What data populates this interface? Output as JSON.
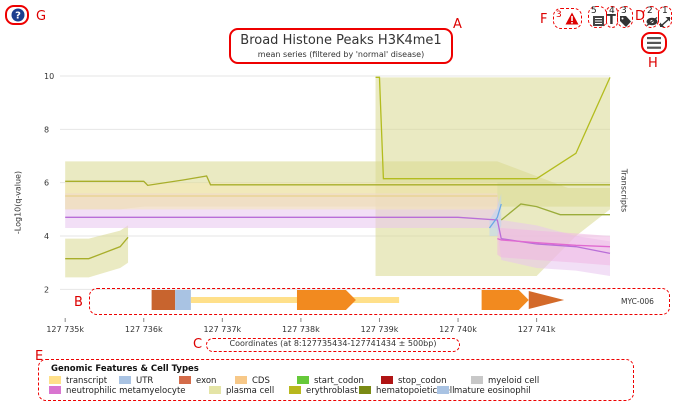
{
  "markers": {
    "A": "A",
    "B": "B",
    "C": "C",
    "D": "D",
    "E": "E",
    "F": "F",
    "G": "G",
    "H": "H"
  },
  "toolbar": {
    "help_icon": "?",
    "warning_count": "3",
    "list_count": "5",
    "text_count": "4",
    "tag_count": "3",
    "eye_count": "2",
    "expand_count": "1",
    "text_glyph": "T"
  },
  "chart_data": {
    "type": "area",
    "title": "Broad Histone Peaks H3K4me1",
    "subtitle": "mean series (filtered by 'normal' disease)",
    "ylabel": "-Log10(q-value)",
    "right_label": "Transcripts",
    "xlabel": "Coordinates (at 8:127735434-127741434 ± 500bp)",
    "ylim": [
      1.6,
      10
    ],
    "xlim": [
      127734934,
      127741934
    ],
    "y_ticks": [
      "2",
      "4",
      "6",
      "8",
      "10"
    ],
    "y_tick_values": [
      2,
      4,
      6,
      8,
      10
    ],
    "x_ticks": [
      "127 735k",
      "127 736k",
      "127 737k",
      "127 738k",
      "127 739k",
      "127 740k",
      "127 741k"
    ],
    "x_tick_values": [
      127735000,
      127736000,
      127737000,
      127738000,
      127739000,
      127740000,
      127741000
    ],
    "grid": true,
    "series": [
      {
        "color": "#a8ae2a",
        "band_color": "#d8d98f",
        "x": [
          127735000,
          127735300,
          127735700,
          127736000,
          127736050,
          127736500,
          127736800,
          127736850,
          127738950,
          127740500,
          127741400,
          127741934
        ],
        "y": [
          6.05,
          6.05,
          6.05,
          6.05,
          5.9,
          6.1,
          6.25,
          5.92,
          5.92,
          5.92,
          5.92,
          5.92
        ],
        "lower": [
          5.0,
          5.0,
          5.0,
          5.1,
          5.1,
          5.1,
          5.1,
          5.1,
          5.1,
          5.1,
          5.1,
          5.1
        ],
        "upper": [
          6.8,
          6.8,
          6.8,
          6.8,
          6.8,
          6.8,
          6.8,
          6.8,
          6.8,
          6.8,
          5.8,
          5.8
        ]
      },
      {
        "color": "#a8ae2a",
        "band_color": "#d8d98f",
        "x": [
          127735000,
          127735300,
          127735700,
          127735800
        ],
        "y": [
          3.15,
          3.15,
          3.6,
          3.95
        ],
        "lower": [
          2.45,
          2.45,
          2.8,
          3.0
        ],
        "upper": [
          3.9,
          3.9,
          4.2,
          4.4
        ]
      },
      {
        "color": "#b3bc1e",
        "band_color": "#d8d98f",
        "x": [
          127738950,
          127739000,
          127739050,
          127740000,
          127740500,
          127741000,
          127741500,
          127741934
        ],
        "y": [
          9.95,
          9.95,
          6.15,
          6.15,
          6.15,
          6.15,
          7.1,
          9.95
        ],
        "lower": [
          2.5,
          2.5,
          2.5,
          2.5,
          2.5,
          2.5,
          4.0,
          5.0
        ],
        "upper": [
          9.95,
          9.95,
          9.95,
          9.95,
          9.95,
          9.95,
          9.95,
          9.95
        ]
      },
      {
        "color": "#b96ed8",
        "band_color": "#e8c4ef",
        "x": [
          127735000,
          127736000,
          127737000,
          127738000,
          127739000,
          127740000,
          127740500,
          127740550,
          127741000,
          127741500,
          127741934
        ],
        "y": [
          4.7,
          4.7,
          4.7,
          4.7,
          4.7,
          4.7,
          4.6,
          3.9,
          3.7,
          3.6,
          3.35
        ],
        "lower": [
          4.3,
          4.3,
          4.3,
          4.3,
          4.3,
          4.3,
          4.3,
          3.1,
          2.8,
          2.7,
          2.5
        ],
        "upper": [
          5.6,
          5.6,
          5.6,
          5.6,
          5.6,
          5.6,
          5.6,
          4.6,
          4.4,
          4.0,
          3.8
        ]
      },
      {
        "color": "#e06ad0",
        "band_color": "#f0b6e4",
        "x": [
          127740500,
          127740550,
          127741000,
          127741500,
          127741934
        ],
        "y": [
          3.9,
          3.85,
          3.75,
          3.65,
          3.6
        ],
        "lower": [
          3.3,
          3.2,
          3.1,
          3.0,
          2.9
        ],
        "upper": [
          4.3,
          4.3,
          4.2,
          4.1,
          4.0
        ]
      },
      {
        "color": "#6aa8e6",
        "band_color": "#bcd6f3",
        "x": [
          127740400,
          127740500,
          127740550
        ],
        "y": [
          4.3,
          4.7,
          5.2
        ],
        "lower": [
          4.0,
          4.0,
          4.4
        ],
        "upper": [
          4.6,
          5.1,
          5.6
        ]
      },
      {
        "color": "#e8d28c",
        "band_color": "#f6e7b4",
        "x": [
          127735000,
          127736000,
          127737000,
          127738000,
          127739000,
          127740000,
          127740500
        ],
        "y": [
          5.5,
          5.5,
          5.5,
          5.5,
          5.5,
          5.5,
          5.5
        ],
        "lower": [
          5.0,
          5.0,
          5.0,
          5.0,
          5.0,
          5.0,
          5.0
        ],
        "upper": [
          6.0,
          6.0,
          6.0,
          6.0,
          6.0,
          6.0,
          6.0
        ]
      },
      {
        "color": "#9bac3a",
        "band_color": "#ffffff",
        "x": [
          127740550,
          127740800,
          127741000,
          127741300,
          127741934
        ],
        "y": [
          4.6,
          5.2,
          5.1,
          4.8,
          4.8
        ],
        "lower": [
          4.6,
          5.2,
          5.1,
          4.8,
          4.8
        ],
        "upper": [
          4.6,
          5.2,
          5.1,
          4.8,
          4.8
        ]
      }
    ],
    "transcript": {
      "label": "MYC-006",
      "segments": [
        {
          "kind": "UTR5",
          "start": 127736100,
          "end": 127736400,
          "color": "#c8642e"
        },
        {
          "kind": "UTR5b",
          "start": 127736400,
          "end": 127736600,
          "color": "#a9c3e3"
        },
        {
          "kind": "intron",
          "start": 127736600,
          "end": 127739250,
          "color": "#ffe08a"
        },
        {
          "kind": "CDS",
          "start": 127737950,
          "end": 127738700,
          "color": "#f28a1f"
        },
        {
          "kind": "CDS",
          "start": 127740300,
          "end": 127740900,
          "color": "#f28a1f"
        },
        {
          "kind": "UTR3",
          "start": 127740900,
          "end": 127741350,
          "color": "#d36a2a"
        }
      ]
    },
    "legend": {
      "title": "Genomic Features & Cell Types",
      "items": [
        {
          "label": "transcript",
          "color": "#ffe08a"
        },
        {
          "label": "UTR",
          "color": "#a9c3e3"
        },
        {
          "label": "exon",
          "color": "#d46c4a"
        },
        {
          "label": "CDS",
          "color": "#f7c888"
        },
        {
          "label": "start_codon",
          "color": "#66c93a"
        },
        {
          "label": "stop_codon",
          "color": "#b01414"
        },
        {
          "label": "myeloid cell",
          "color": "#c8c8c8"
        },
        {
          "label": "neutrophilic metamyelocyte",
          "color": "#d975d0"
        },
        {
          "label": "plasma cell",
          "color": "#e4e4a6"
        },
        {
          "label": "erythroblast",
          "color": "#b8b81e"
        },
        {
          "label": "hematopoietic cell",
          "color": "#7a8a14"
        },
        {
          "label": "mature eosinophil",
          "color": "#a9c3e3"
        }
      ]
    }
  }
}
